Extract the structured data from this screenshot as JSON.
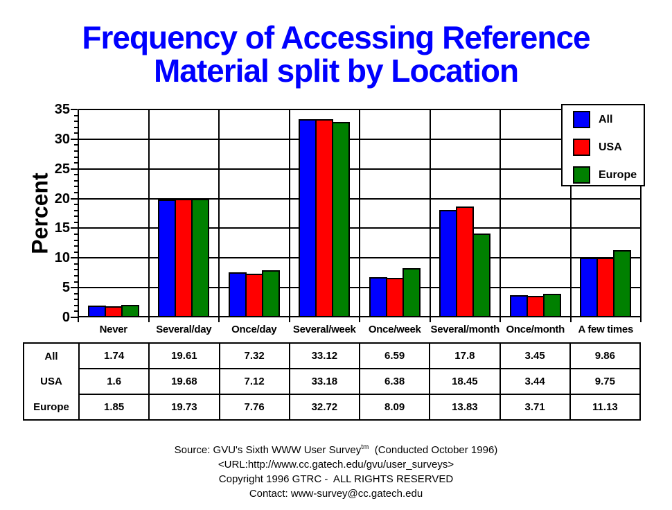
{
  "page": {
    "background": "#ffffff"
  },
  "colors": {
    "title": "#0000ff",
    "axis": "#000000",
    "grid": "#000000",
    "bar_all": "#0000ff",
    "bar_usa": "#ff0000",
    "bar_europe": "#008000"
  },
  "chart_data": {
    "type": "bar",
    "title_lines": [
      "Frequency of Accessing Reference",
      "Material split by Location"
    ],
    "ylabel": "Percent",
    "xlabel": "",
    "ylim": [
      0,
      35
    ],
    "y_major_step": 5,
    "y_minor_step": 1,
    "grid": true,
    "legend_position": "top-right",
    "categories": [
      "Never",
      "Several/day",
      "Once/day",
      "Several/week",
      "Once/week",
      "Several/month",
      "Once/month",
      "A few times"
    ],
    "series": [
      {
        "name": "All",
        "color": "#0000ff",
        "values": [
          1.74,
          19.61,
          7.32,
          33.12,
          6.59,
          17.8,
          3.45,
          9.86
        ]
      },
      {
        "name": "USA",
        "color": "#ff0000",
        "values": [
          1.6,
          19.68,
          7.12,
          33.18,
          6.38,
          18.45,
          3.44,
          9.75
        ]
      },
      {
        "name": "Europe",
        "color": "#008000",
        "values": [
          1.85,
          19.73,
          7.76,
          32.72,
          8.09,
          13.83,
          3.71,
          11.13
        ]
      }
    ]
  },
  "footer": {
    "source_pre": "Source: GVU's Sixth WWW User Survey",
    "source_sup": "tm",
    "source_post": "  (Conducted October 1996)",
    "url": "<URL:http://www.cc.gatech.edu/gvu/user_surveys>",
    "copyright": "Copyright 1996 GTRC -  ALL RIGHTS RESERVED",
    "contact": "Contact: www-survey@cc.gatech.edu"
  }
}
